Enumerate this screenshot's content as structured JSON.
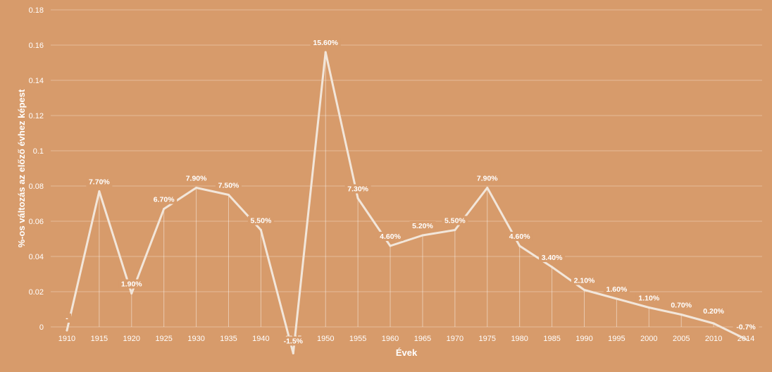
{
  "chart_data": {
    "type": "line",
    "background_color": "#D79B6B",
    "line_color": "#F2E6DA",
    "grid": true,
    "xlabel": "Évek",
    "ylabel": "%-os változás az előző évhez képest",
    "ylim": [
      0,
      0.18
    ],
    "yticks": [
      "0",
      "0.02",
      "0.04",
      "0.06",
      "0.08",
      "0.1",
      "0.12",
      "0.14",
      "0.16",
      "0.18"
    ],
    "categories": [
      "1910",
      "1915",
      "1920",
      "1925",
      "1930",
      "1935",
      "1940",
      "1945",
      "1950",
      "1955",
      "1960",
      "1965",
      "1970",
      "1975",
      "1980",
      "1985",
      "1990",
      "1995",
      "2000",
      "2005",
      "2010",
      "2014"
    ],
    "values": [
      -0.002,
      0.077,
      0.019,
      0.067,
      0.079,
      0.075,
      0.055,
      -0.015,
      0.156,
      0.073,
      0.046,
      0.052,
      0.055,
      0.079,
      0.046,
      0.034,
      0.021,
      0.016,
      0.011,
      0.007,
      0.002,
      -0.007
    ],
    "data_labels": [
      "-",
      "7.70%",
      "1.90%",
      "6.70%",
      "7.90%",
      "7.50%",
      "5.50%",
      "-1.5%",
      "15.60%",
      "7.30%",
      "4.60%",
      "5.20%",
      "5.50%",
      "7.90%",
      "4.60%",
      "3.40%",
      "2.10%",
      "1.60%",
      "1.10%",
      "0.70%",
      "0.20%",
      "-0.7%"
    ]
  }
}
